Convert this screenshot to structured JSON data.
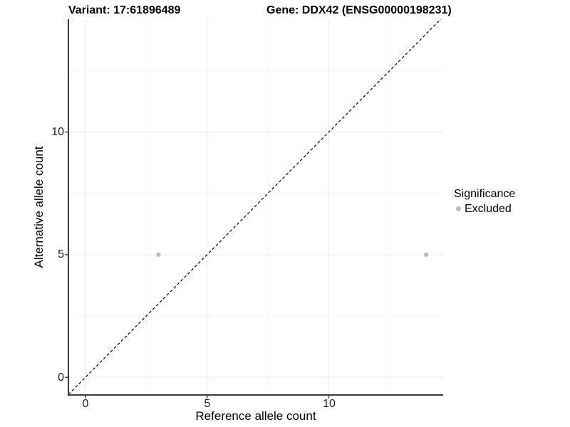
{
  "chart_data": {
    "type": "scatter",
    "title_left": "Variant: 17:61896489",
    "title_right": "Gene: DDX42 (ENSG00000198231)",
    "xlabel": "Reference allele count",
    "ylabel": "Alternative allele count",
    "xlim": [
      -0.7,
      14.7
    ],
    "ylim": [
      -0.72,
      14.6
    ],
    "x_major_ticks": [
      0,
      5,
      10
    ],
    "y_major_ticks": [
      0,
      5,
      10
    ],
    "x_minor_ticks": [
      2.5,
      7.5,
      12.5
    ],
    "y_minor_ticks": [
      2.5,
      7.5,
      12.5
    ],
    "grid": "major-and-minor",
    "identity_line": {
      "equation": "y = x",
      "style": "dashed",
      "color": "#000000"
    },
    "series": [
      {
        "name": "Excluded",
        "color": "#bdbdbd",
        "points": [
          {
            "x": 3,
            "y": 5
          },
          {
            "x": 14,
            "y": 5
          }
        ]
      }
    ],
    "legend": {
      "title": "Significance",
      "position": "right",
      "items": [
        {
          "label": "Excluded",
          "color": "#bdbdbd"
        }
      ]
    },
    "colors": {
      "background": "#ffffff",
      "grid_major": "#ebebeb",
      "grid_minor": "#f6f6f6",
      "axis_line": "#3c3c3c",
      "tick_mark": "#333333",
      "point": "#bdbdbd",
      "dashed_line": "#000000"
    }
  }
}
